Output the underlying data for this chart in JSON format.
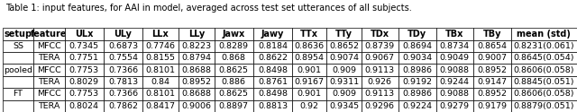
{
  "title_text": "Table 1: input features, for AAI in model, averaged across test set utterances of all subjects.",
  "columns": [
    "setup",
    "feature",
    "ULx",
    "ULy",
    "LLx",
    "LLy",
    "Jawx",
    "Jawy",
    "TTx",
    "TTy",
    "TDx",
    "TDy",
    "TBx",
    "TBy",
    "mean (std)"
  ],
  "rows": [
    [
      "SS",
      "MFCC",
      "0.7345",
      "0.6873",
      "0.7746",
      "0.8223",
      "0.8289",
      "0.8184",
      "0.8636",
      "0.8652",
      "0.8739",
      "0.8694",
      "0.8734",
      "0.8654",
      "0.8231(0.061)"
    ],
    [
      "",
      "TERA",
      "0.7751",
      "0.7554",
      "0.8155",
      "0.8794",
      "0.868",
      "0.8622",
      "0.8954",
      "0.9074",
      "0.9067",
      "0.9034",
      "0.9049",
      "0.9007",
      "0.8645(0.054)"
    ],
    [
      "pooled",
      "MFCC",
      "0.7753",
      "0.7366",
      "0.8101",
      "0.8688",
      "0.8625",
      "0.8498",
      "0.901",
      "0.909",
      "0.9113",
      "0.8986",
      "0.9088",
      "0.8952",
      "0.8606(0.058)"
    ],
    [
      "",
      "TERA",
      "0.8029",
      "0.7813",
      "0.84",
      "0.8952",
      "0.886",
      "0.8761",
      "0.9167",
      "0.9311",
      "0.926",
      "0.9192",
      "0.9244",
      "0.9147",
      "0.8845(0.051)"
    ],
    [
      "FT",
      "MFCC",
      "0.7753",
      "0.7366",
      "0.8101",
      "0.8688",
      "0.8625",
      "0.8498",
      "0.901",
      "0.909",
      "0.9113",
      "0.8986",
      "0.9088",
      "0.8952",
      "0.8606(0.058)"
    ],
    [
      "",
      "TERA",
      "0.8024",
      "0.7862",
      "0.8417",
      "0.9006",
      "0.8897",
      "0.8813",
      "0.92",
      "0.9345",
      "0.9296",
      "0.9224",
      "0.9279",
      "0.9179",
      "0.8879(0.051)"
    ]
  ],
  "bg_color": "#ffffff",
  "border_color": "#000000",
  "font_size": 6.8,
  "header_font_size": 7.0,
  "title_font_size": 7.0
}
